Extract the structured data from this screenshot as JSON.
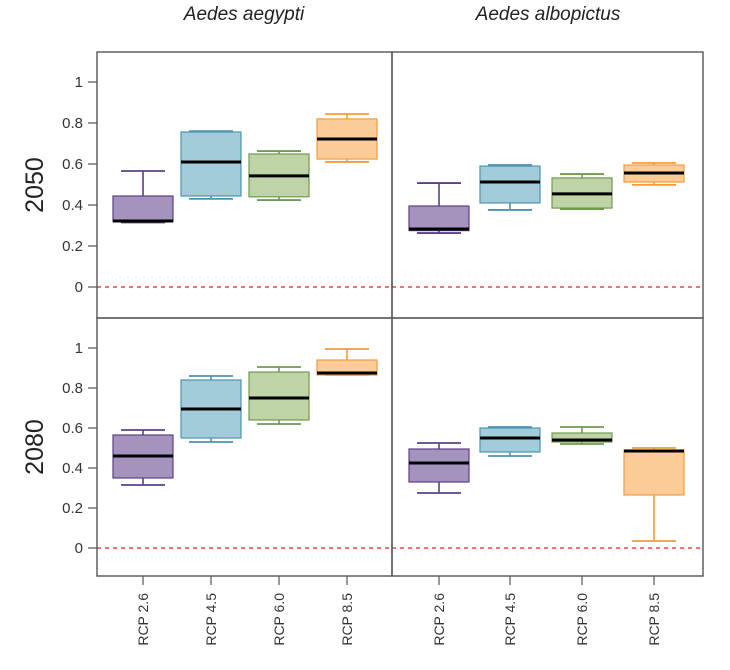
{
  "chart_data": {
    "type": "boxplot",
    "title": "",
    "columns": [
      "Aedes aegypti",
      "Aedes albopictus"
    ],
    "rows": [
      "2050",
      "2080"
    ],
    "categories": [
      "RCP 2.6",
      "RCP 4.5",
      "RCP 6.0",
      "RCP 8.5"
    ],
    "yticks": [
      "0",
      "0.2",
      "0.4",
      "0.6",
      "0.8",
      "1"
    ],
    "ylim": [
      -0.15,
      1.15
    ],
    "reference_line": {
      "value": 0,
      "style": "dashed",
      "color": "#e8474c"
    },
    "series_colors": [
      {
        "fill": "#a493bd",
        "stroke": "#5b3f86"
      },
      {
        "fill": "#a3ccdb",
        "stroke": "#4a94ae"
      },
      {
        "fill": "#bed4a6",
        "stroke": "#6f9a4f"
      },
      {
        "fill": "#fccc98",
        "stroke": "#f39b3c"
      }
    ],
    "panels": [
      {
        "row": "2050",
        "column": "Aedes aegypti",
        "boxes": [
          {
            "category": "RCP 2.6",
            "min": 0.315,
            "q1": 0.32,
            "median": 0.322,
            "q3": 0.444,
            "max": 0.566
          },
          {
            "category": "RCP 4.5",
            "min": 0.43,
            "q1": 0.444,
            "median": 0.61,
            "q3": 0.756,
            "max": 0.76
          },
          {
            "category": "RCP 6.0",
            "min": 0.424,
            "q1": 0.44,
            "median": 0.542,
            "q3": 0.649,
            "max": 0.663
          },
          {
            "category": "RCP 8.5",
            "min": 0.61,
            "q1": 0.624,
            "median": 0.722,
            "q3": 0.82,
            "max": 0.844
          }
        ]
      },
      {
        "row": "2050",
        "column": "Aedes albopictus",
        "boxes": [
          {
            "category": "RCP 2.6",
            "min": 0.263,
            "q1": 0.275,
            "median": 0.283,
            "q3": 0.395,
            "max": 0.507
          },
          {
            "category": "RCP 4.5",
            "min": 0.376,
            "q1": 0.41,
            "median": 0.512,
            "q3": 0.59,
            "max": 0.595
          },
          {
            "category": "RCP 6.0",
            "min": 0.38,
            "q1": 0.385,
            "median": 0.454,
            "q3": 0.532,
            "max": 0.551
          },
          {
            "category": "RCP 8.5",
            "min": 0.498,
            "q1": 0.512,
            "median": 0.556,
            "q3": 0.595,
            "max": 0.605
          }
        ]
      },
      {
        "row": "2080",
        "column": "Aedes aegypti",
        "boxes": [
          {
            "category": "RCP 2.6",
            "min": 0.315,
            "q1": 0.35,
            "median": 0.46,
            "q3": 0.565,
            "max": 0.59
          },
          {
            "category": "RCP 4.5",
            "min": 0.53,
            "q1": 0.55,
            "median": 0.695,
            "q3": 0.84,
            "max": 0.86
          },
          {
            "category": "RCP 6.0",
            "min": 0.62,
            "q1": 0.64,
            "median": 0.75,
            "q3": 0.88,
            "max": 0.905
          },
          {
            "category": "RCP 8.5",
            "min": 0.865,
            "q1": 0.865,
            "median": 0.875,
            "q3": 0.94,
            "max": 0.995
          }
        ]
      },
      {
        "row": "2080",
        "column": "Aedes albopictus",
        "boxes": [
          {
            "category": "RCP 2.6",
            "min": 0.275,
            "q1": 0.33,
            "median": 0.425,
            "q3": 0.495,
            "max": 0.525
          },
          {
            "category": "RCP 4.5",
            "min": 0.46,
            "q1": 0.48,
            "median": 0.55,
            "q3": 0.6,
            "max": 0.605
          },
          {
            "category": "RCP 6.0",
            "min": 0.52,
            "q1": 0.53,
            "median": 0.54,
            "q3": 0.575,
            "max": 0.605
          },
          {
            "category": "RCP 8.5",
            "min": 0.035,
            "q1": 0.265,
            "median": 0.485,
            "q3": 0.49,
            "max": 0.5
          }
        ]
      }
    ]
  }
}
